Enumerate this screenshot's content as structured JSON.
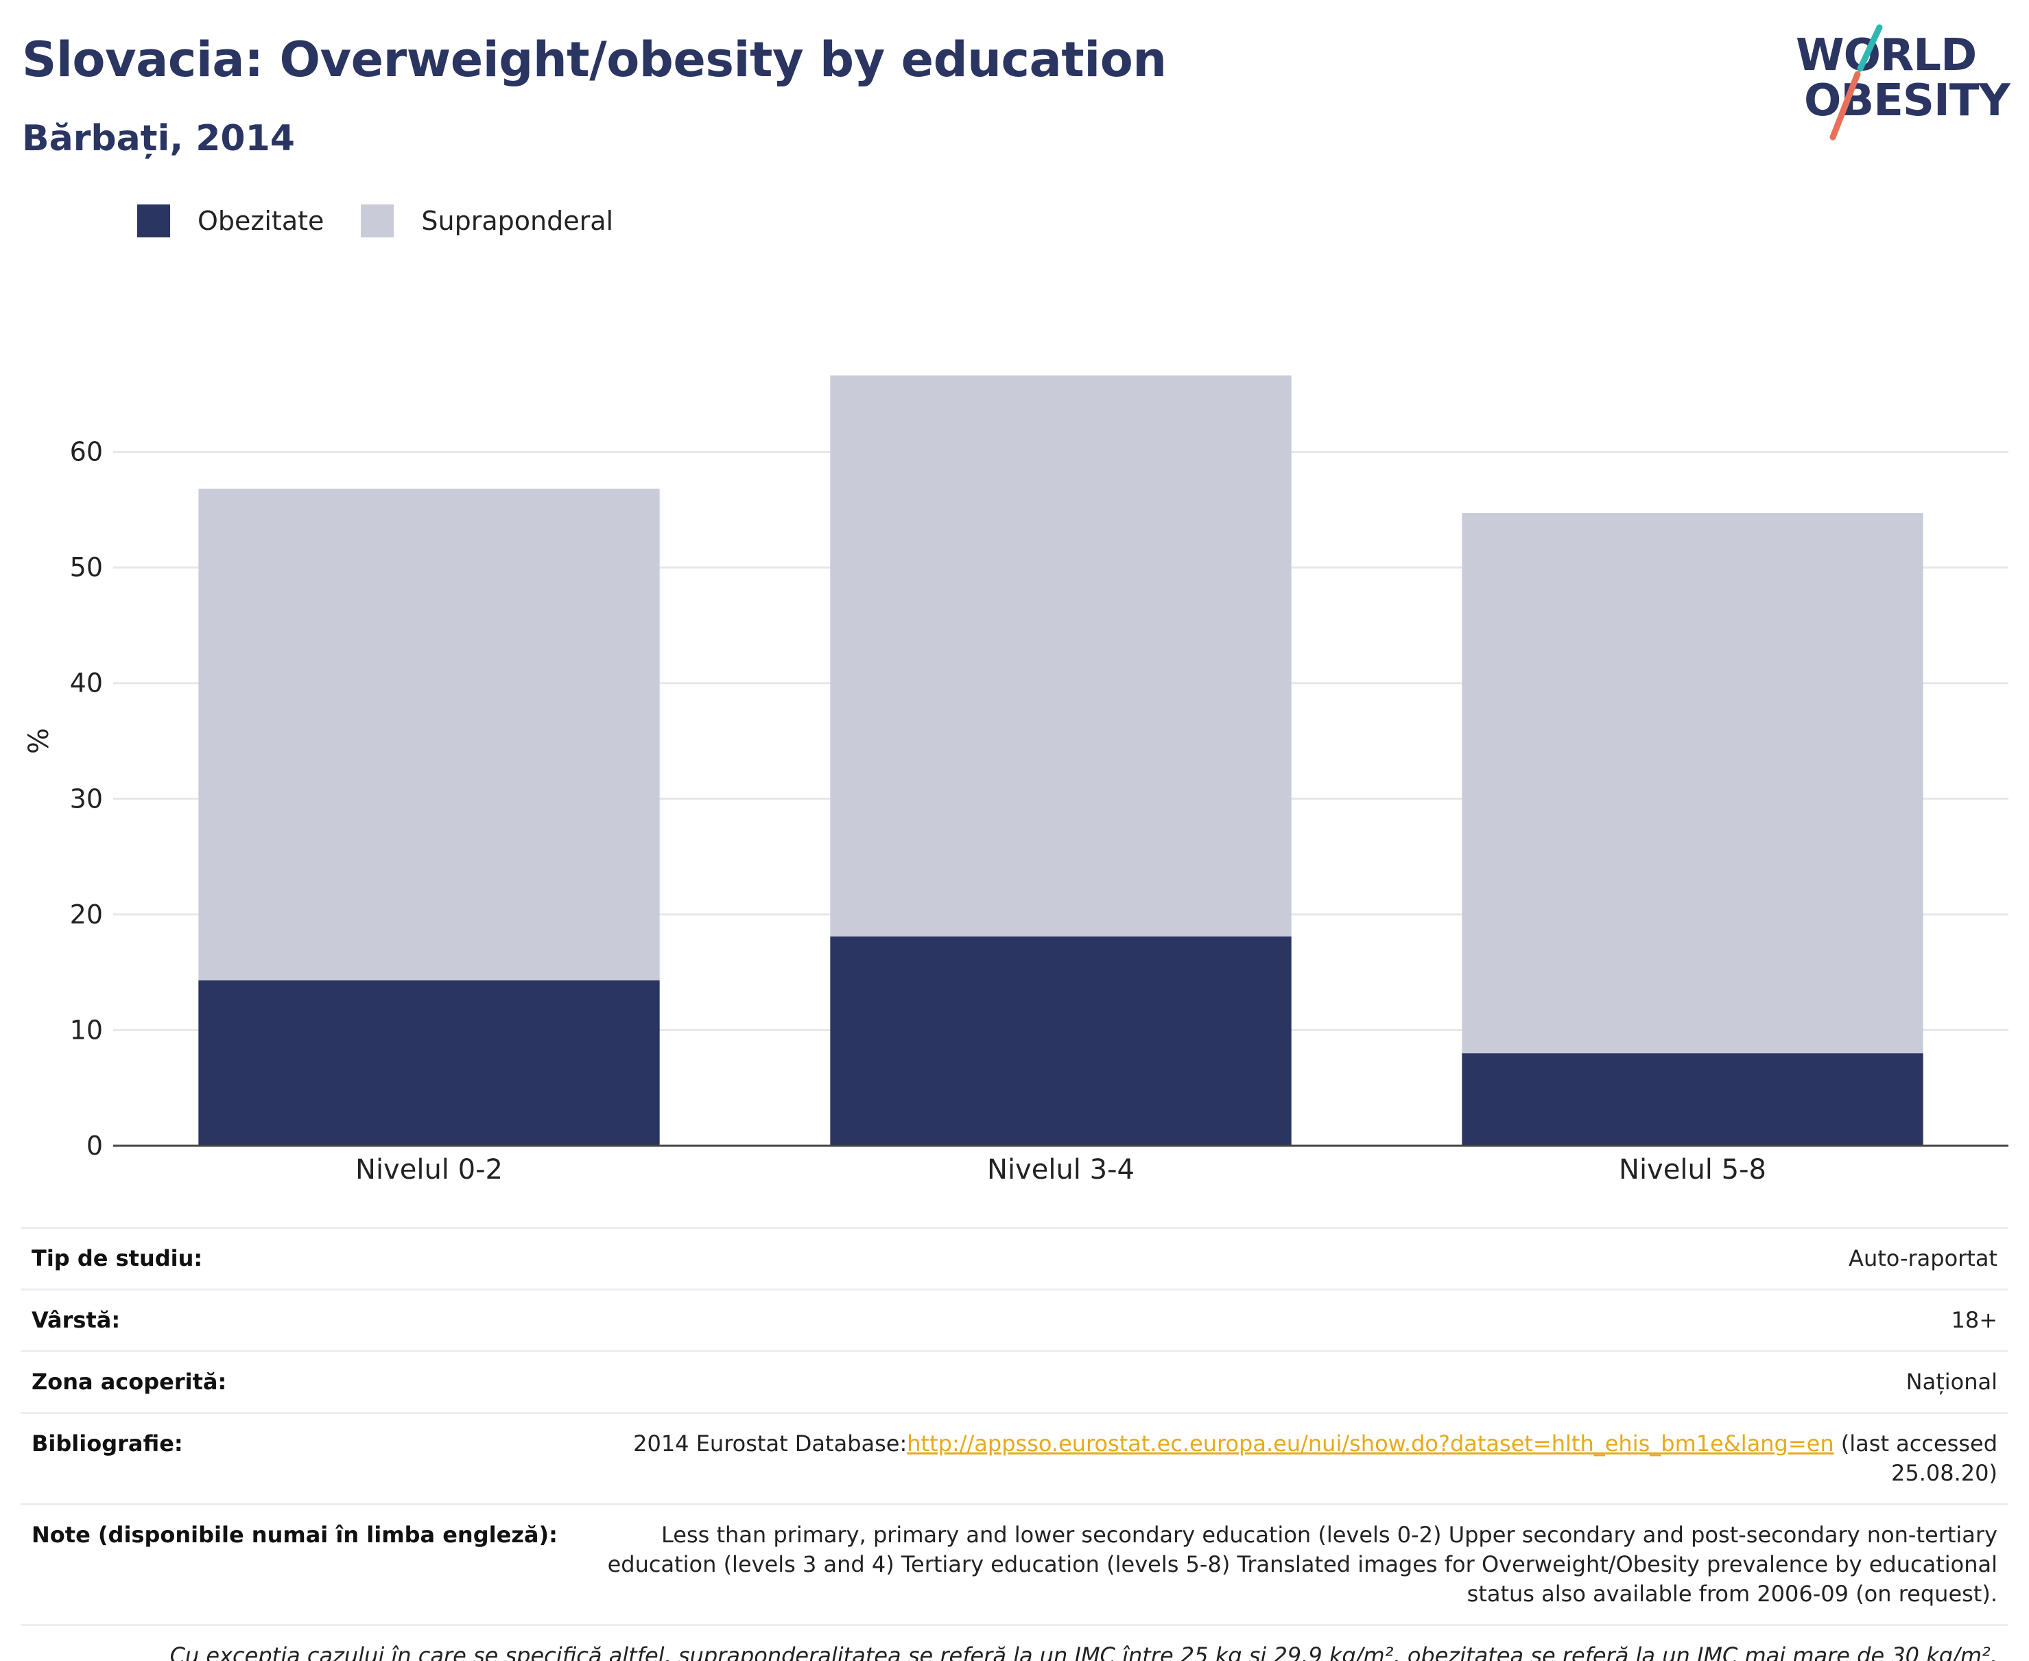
{
  "header": {
    "title": "Slovacia: Overweight/obesity by education",
    "subtitle": "Bărbați, 2014"
  },
  "logo": {
    "line1": "WORLD",
    "line2": "OBESITY",
    "colors": {
      "navy": "#2a3562",
      "teal": "#2fb8b3",
      "coral": "#e8705a"
    }
  },
  "legend": [
    {
      "label": "Obezitate",
      "color": "#2a3562"
    },
    {
      "label": "Supraponderal",
      "color": "#c9ccd8"
    }
  ],
  "chart_data": {
    "type": "bar",
    "stacked": true,
    "categories": [
      "Nivelul 0-2",
      "Nivelul 3-4",
      "Nivelul 5-8"
    ],
    "series": [
      {
        "name": "Obezitate",
        "color": "#2a3562",
        "values": [
          14.3,
          18.1,
          8.0
        ]
      },
      {
        "name": "Supraponderal",
        "color": "#c9ccd8",
        "values": [
          42.5,
          48.5,
          46.7
        ]
      }
    ],
    "ylabel": "%",
    "ylim": [
      0,
      70
    ],
    "yticks": [
      0,
      10,
      20,
      30,
      40,
      50,
      60
    ],
    "grid": true,
    "legend_position": "top-left"
  },
  "info": {
    "study_type_label": "Tip de studiu:",
    "study_type_value": "Auto-raportat",
    "age_label": "Vârstă:",
    "age_value": "18+",
    "area_label": "Zona acoperită:",
    "area_value": "Național",
    "bibliography_label": "Bibliografie:",
    "bibliography_prefix": "2014 Eurostat Database:",
    "bibliography_url": "http://appsso.eurostat.ec.europa.eu/nui/show.do?dataset=hlth_ehis_bm1e&lang=en",
    "bibliography_suffix": " (last accessed 25.08.20)",
    "notes_label": "Note (disponibile numai în limba engleză):",
    "notes_value": "Less than primary, primary and lower secondary education (levels 0-2) Upper secondary and post-secondary non-tertiary education (levels 3 and 4) Tertiary education (levels 5-8) Translated images for Overweight/Obesity prevalence by educational status also available from 2006-09 (on request).",
    "footnote": "Cu excepția cazului în care se specifică altfel, supraponderalitatea se referă la un IMC între 25 kg și 29,9 kg/m², obezitatea se referă la un IMC mai mare de 30 kg/m²."
  }
}
